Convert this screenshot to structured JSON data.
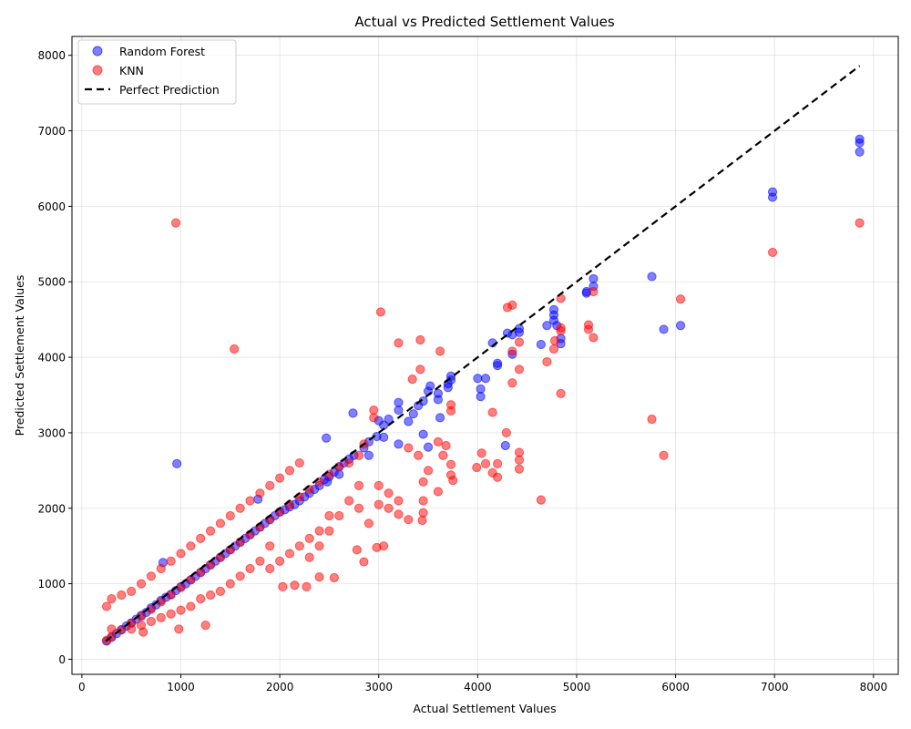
{
  "chart_data": {
    "type": "scatter",
    "title": "Actual vs Predicted Settlement Values",
    "xlabel": "Actual Settlement Values",
    "ylabel": "Predicted Settlement Values",
    "xlim": [
      -1800,
      10000
    ],
    "ylim": [
      -250,
      8250
    ],
    "xlim_view": [
      -100,
      8250
    ],
    "ylim_view": [
      -200,
      8250
    ],
    "x_ticks": [
      0,
      1000,
      2000,
      3000,
      4000,
      5000,
      6000,
      7000,
      8000
    ],
    "x_tick_labels": [
      "0",
      "1000",
      "2000",
      "3000",
      "4000",
      "5000",
      "6000",
      "7000",
      "8000"
    ],
    "y_ticks": [
      0,
      1000,
      2000,
      3000,
      4000,
      5000,
      6000,
      7000,
      8000
    ],
    "y_tick_labels": [
      "0",
      "1000",
      "2000",
      "3000",
      "4000",
      "5000",
      "6000",
      "7000",
      "8000"
    ],
    "grid": true,
    "legend_position": "top-left",
    "series": [
      {
        "name": "Random Forest",
        "color": "#0000ff",
        "points": [
          [
            7860,
            6890
          ],
          [
            7860,
            6840
          ],
          [
            7860,
            6720
          ],
          [
            6980,
            6190
          ],
          [
            6980,
            6120
          ],
          [
            5760,
            5070
          ],
          [
            5170,
            5040
          ],
          [
            5170,
            4940
          ],
          [
            5100,
            4870
          ],
          [
            5100,
            4850
          ],
          [
            6050,
            4420
          ],
          [
            5880,
            4370
          ],
          [
            4770,
            4630
          ],
          [
            4770,
            4560
          ],
          [
            4770,
            4490
          ],
          [
            4800,
            4420
          ],
          [
            4840,
            4250
          ],
          [
            4840,
            4180
          ],
          [
            4700,
            4420
          ],
          [
            4640,
            4170
          ],
          [
            4420,
            4380
          ],
          [
            4420,
            4330
          ],
          [
            4350,
            4300
          ],
          [
            4300,
            4320
          ],
          [
            4150,
            4190
          ],
          [
            4200,
            3920
          ],
          [
            4200,
            3890
          ],
          [
            4350,
            4040
          ],
          [
            4000,
            3720
          ],
          [
            4080,
            3720
          ],
          [
            4030,
            3580
          ],
          [
            4030,
            3480
          ],
          [
            4280,
            2830
          ],
          [
            3730,
            3750
          ],
          [
            3730,
            3700
          ],
          [
            3700,
            3650
          ],
          [
            3700,
            3600
          ],
          [
            3600,
            3520
          ],
          [
            3600,
            3440
          ],
          [
            3620,
            3200
          ],
          [
            3520,
            3620
          ],
          [
            3500,
            3550
          ],
          [
            3450,
            3420
          ],
          [
            3400,
            3360
          ],
          [
            3350,
            3250
          ],
          [
            3300,
            3150
          ],
          [
            3200,
            3400
          ],
          [
            3200,
            3300
          ],
          [
            3100,
            3180
          ],
          [
            3050,
            3100
          ],
          [
            3000,
            3160
          ],
          [
            2980,
            2950
          ],
          [
            2900,
            2880
          ],
          [
            2850,
            2800
          ],
          [
            2750,
            2700
          ],
          [
            2700,
            2650
          ],
          [
            2650,
            2600
          ],
          [
            2600,
            2550
          ],
          [
            2550,
            2480
          ],
          [
            2500,
            2420
          ],
          [
            2450,
            2380
          ],
          [
            2400,
            2300
          ],
          [
            2350,
            2250
          ],
          [
            2300,
            2200
          ],
          [
            2250,
            2150
          ],
          [
            2200,
            2100
          ],
          [
            2150,
            2050
          ],
          [
            2100,
            2020
          ],
          [
            2050,
            1980
          ],
          [
            2000,
            1950
          ],
          [
            1950,
            1900
          ],
          [
            1900,
            1850
          ],
          [
            1850,
            1800
          ],
          [
            1800,
            1750
          ],
          [
            1750,
            1700
          ],
          [
            1700,
            1650
          ],
          [
            1650,
            1600
          ],
          [
            1600,
            1550
          ],
          [
            1550,
            1500
          ],
          [
            1500,
            1450
          ],
          [
            1450,
            1400
          ],
          [
            1400,
            1350
          ],
          [
            1350,
            1300
          ],
          [
            1300,
            1250
          ],
          [
            1250,
            1200
          ],
          [
            1200,
            1150
          ],
          [
            1150,
            1100
          ],
          [
            1100,
            1050
          ],
          [
            1050,
            1000
          ],
          [
            1000,
            960
          ],
          [
            950,
            910
          ],
          [
            900,
            860
          ],
          [
            850,
            820
          ],
          [
            800,
            780
          ],
          [
            750,
            720
          ],
          [
            700,
            680
          ],
          [
            650,
            620
          ],
          [
            600,
            580
          ],
          [
            550,
            530
          ],
          [
            500,
            480
          ],
          [
            450,
            440
          ],
          [
            400,
            390
          ],
          [
            350,
            340
          ],
          [
            300,
            290
          ],
          [
            250,
            240
          ],
          [
            2740,
            3260
          ],
          [
            2470,
            2930
          ],
          [
            3050,
            2940
          ],
          [
            960,
            2590
          ],
          [
            820,
            1280
          ],
          [
            1780,
            2120
          ],
          [
            3450,
            2980
          ],
          [
            3200,
            2850
          ],
          [
            3500,
            2810
          ],
          [
            2900,
            2700
          ],
          [
            2600,
            2450
          ],
          [
            2480,
            2350
          ]
        ]
      },
      {
        "name": "KNN",
        "color": "#ff0000",
        "points": [
          [
            7860,
            5780
          ],
          [
            6980,
            5390
          ],
          [
            950,
            5780
          ],
          [
            1540,
            4110
          ],
          [
            3020,
            4600
          ],
          [
            6050,
            4770
          ],
          [
            4840,
            4780
          ],
          [
            5170,
            4870
          ],
          [
            4300,
            4660
          ],
          [
            4350,
            4690
          ],
          [
            5120,
            4430
          ],
          [
            5120,
            4370
          ],
          [
            5170,
            4260
          ],
          [
            4780,
            4220
          ],
          [
            4770,
            4110
          ],
          [
            4840,
            4390
          ],
          [
            4840,
            4350
          ],
          [
            4420,
            4200
          ],
          [
            4350,
            4080
          ],
          [
            4700,
            3940
          ],
          [
            4420,
            3840
          ],
          [
            4350,
            3660
          ],
          [
            4840,
            3520
          ],
          [
            3420,
            4230
          ],
          [
            3200,
            4190
          ],
          [
            3620,
            4080
          ],
          [
            3420,
            3840
          ],
          [
            3340,
            3710
          ],
          [
            5760,
            3180
          ],
          [
            5880,
            2700
          ],
          [
            4640,
            2110
          ],
          [
            4150,
            3270
          ],
          [
            4290,
            3000
          ],
          [
            4420,
            2740
          ],
          [
            4420,
            2640
          ],
          [
            4420,
            2520
          ],
          [
            4040,
            2730
          ],
          [
            4080,
            2590
          ],
          [
            3990,
            2540
          ],
          [
            4200,
            2590
          ],
          [
            4200,
            2410
          ],
          [
            4150,
            2470
          ],
          [
            3730,
            3370
          ],
          [
            3730,
            3290
          ],
          [
            3600,
            2880
          ],
          [
            3680,
            2830
          ],
          [
            3650,
            2700
          ],
          [
            3730,
            2580
          ],
          [
            3730,
            2440
          ],
          [
            3750,
            2370
          ],
          [
            3600,
            2220
          ],
          [
            3500,
            2500
          ],
          [
            3450,
            2350
          ],
          [
            3450,
            2100
          ],
          [
            3450,
            1940
          ],
          [
            3440,
            1840
          ],
          [
            3300,
            1850
          ],
          [
            3200,
            1920
          ],
          [
            3100,
            2000
          ],
          [
            3050,
            1500
          ],
          [
            2980,
            1480
          ],
          [
            2850,
            1290
          ],
          [
            2780,
            1450
          ],
          [
            2550,
            1080
          ],
          [
            2400,
            1090
          ],
          [
            2270,
            960
          ],
          [
            2150,
            980
          ],
          [
            2030,
            960
          ],
          [
            1250,
            450
          ],
          [
            980,
            400
          ],
          [
            300,
            400
          ],
          [
            620,
            360
          ],
          [
            2950,
            3300
          ],
          [
            2950,
            3200
          ],
          [
            2850,
            2850
          ],
          [
            2800,
            2700
          ],
          [
            2700,
            2600
          ],
          [
            2600,
            2550
          ],
          [
            2500,
            2450
          ],
          [
            2400,
            2350
          ],
          [
            2300,
            2250
          ],
          [
            2200,
            2150
          ],
          [
            2100,
            2050
          ],
          [
            2000,
            1950
          ],
          [
            1900,
            1850
          ],
          [
            1800,
            1750
          ],
          [
            1700,
            1650
          ],
          [
            1600,
            1550
          ],
          [
            1500,
            1450
          ],
          [
            1400,
            1350
          ],
          [
            1300,
            1250
          ],
          [
            1200,
            1150
          ],
          [
            1100,
            1050
          ],
          [
            1000,
            950
          ],
          [
            900,
            850
          ],
          [
            800,
            760
          ],
          [
            700,
            660
          ],
          [
            600,
            570
          ],
          [
            500,
            480
          ],
          [
            400,
            390
          ],
          [
            300,
            300
          ],
          [
            250,
            250
          ],
          [
            1900,
            1500
          ],
          [
            1800,
            1300
          ],
          [
            1700,
            1200
          ],
          [
            1600,
            1100
          ],
          [
            1500,
            1000
          ],
          [
            1400,
            900
          ],
          [
            1300,
            850
          ],
          [
            1200,
            800
          ],
          [
            1100,
            700
          ],
          [
            1000,
            650
          ],
          [
            900,
            600
          ],
          [
            800,
            550
          ],
          [
            700,
            500
          ],
          [
            600,
            450
          ],
          [
            500,
            400
          ],
          [
            1500,
            1900
          ],
          [
            1400,
            1800
          ],
          [
            1300,
            1700
          ],
          [
            1200,
            1600
          ],
          [
            1100,
            1500
          ],
          [
            1000,
            1400
          ],
          [
            900,
            1300
          ],
          [
            800,
            1200
          ],
          [
            700,
            1100
          ],
          [
            600,
            1000
          ],
          [
            500,
            900
          ],
          [
            400,
            850
          ],
          [
            300,
            800
          ],
          [
            250,
            700
          ],
          [
            2500,
            1900
          ],
          [
            2400,
            1700
          ],
          [
            2300,
            1600
          ],
          [
            2200,
            1500
          ],
          [
            2100,
            1400
          ],
          [
            2000,
            1300
          ],
          [
            1900,
            1200
          ],
          [
            2200,
            2600
          ],
          [
            2100,
            2500
          ],
          [
            2000,
            2400
          ],
          [
            1900,
            2300
          ],
          [
            1800,
            2200
          ],
          [
            1700,
            2100
          ],
          [
            1600,
            2000
          ],
          [
            2800,
            2300
          ],
          [
            2700,
            2100
          ],
          [
            2600,
            1900
          ],
          [
            2500,
            1700
          ],
          [
            2400,
            1500
          ],
          [
            2300,
            1350
          ],
          [
            2800,
            2000
          ],
          [
            2900,
            1800
          ],
          [
            3000,
            2300
          ],
          [
            3100,
            2200
          ],
          [
            3200,
            2100
          ],
          [
            3000,
            2050
          ],
          [
            3300,
            2800
          ],
          [
            3400,
            2700
          ]
        ]
      }
    ],
    "reference_line": {
      "name": "Perfect Prediction",
      "color": "#000000",
      "from": [
        240,
        240
      ],
      "to": [
        7860,
        7860
      ]
    }
  }
}
